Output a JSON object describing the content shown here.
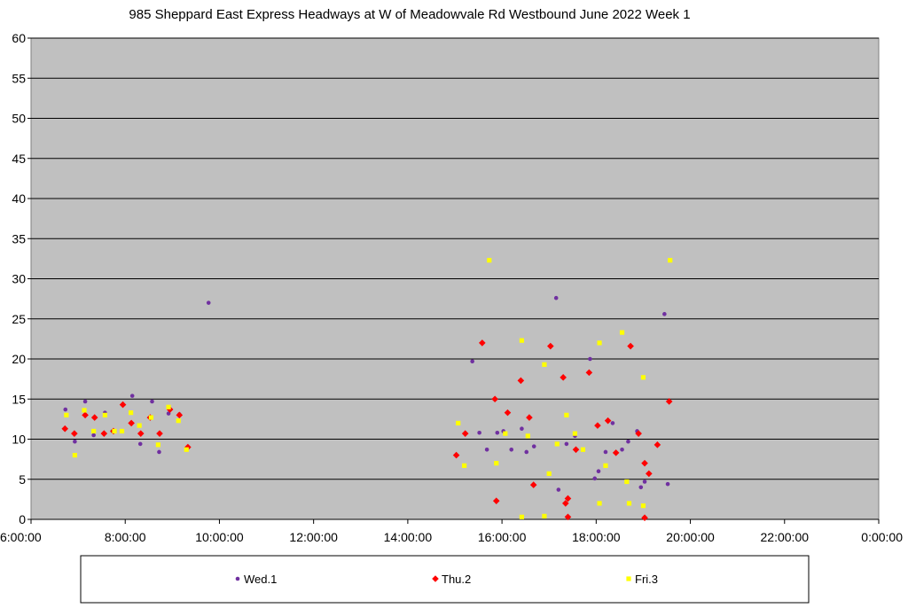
{
  "chart_data": {
    "type": "scatter",
    "title": "985 Sheppard East Express Headways at W of Meadowvale Rd Westbound June 2022  Week 1",
    "xlabel": "",
    "ylabel": "",
    "xlim": [
      6,
      24
    ],
    "ylim": [
      0,
      60
    ],
    "x_ticks": [
      6,
      8,
      10,
      12,
      14,
      16,
      18,
      20,
      22,
      24
    ],
    "x_tick_labels": [
      "6:00:00",
      "8:00:00",
      "10:00:00",
      "12:00:00",
      "14:00:00",
      "16:00:00",
      "18:00:00",
      "20:00:00",
      "22:00:00",
      "0:00:00"
    ],
    "y_ticks": [
      0,
      5,
      10,
      15,
      20,
      25,
      30,
      35,
      40,
      45,
      50,
      55,
      60
    ],
    "grid": true,
    "legend_position": "bottom",
    "plot_background": "#c0c0c0",
    "series": [
      {
        "name": "Wed.1",
        "color": "#7030a0",
        "marker": "circle",
        "points": [
          [
            6.73,
            13.7
          ],
          [
            6.93,
            9.7
          ],
          [
            7.15,
            14.7
          ],
          [
            7.33,
            10.5
          ],
          [
            7.57,
            13.3
          ],
          [
            7.73,
            11.0
          ],
          [
            8.15,
            15.4
          ],
          [
            8.32,
            9.4
          ],
          [
            8.57,
            14.7
          ],
          [
            8.72,
            8.4
          ],
          [
            8.92,
            13.2
          ],
          [
            9.15,
            13.1
          ],
          [
            9.77,
            27.0
          ],
          [
            15.37,
            19.7
          ],
          [
            15.52,
            10.8
          ],
          [
            15.68,
            8.7
          ],
          [
            15.9,
            10.8
          ],
          [
            16.03,
            11.0
          ],
          [
            16.2,
            8.7
          ],
          [
            16.42,
            11.3
          ],
          [
            16.52,
            8.4
          ],
          [
            16.68,
            9.1
          ],
          [
            17.15,
            27.6
          ],
          [
            17.2,
            3.7
          ],
          [
            17.37,
            9.4
          ],
          [
            17.55,
            10.4
          ],
          [
            17.87,
            20.0
          ],
          [
            17.97,
            5.1
          ],
          [
            18.05,
            6.0
          ],
          [
            18.2,
            8.4
          ],
          [
            18.35,
            12.0
          ],
          [
            18.55,
            8.7
          ],
          [
            18.68,
            9.7
          ],
          [
            18.87,
            11.0
          ],
          [
            18.95,
            4.0
          ],
          [
            19.03,
            4.7
          ],
          [
            19.45,
            25.6
          ],
          [
            19.52,
            4.4
          ]
        ]
      },
      {
        "name": "Thu.2",
        "color": "#ff0000",
        "marker": "diamond",
        "points": [
          [
            6.72,
            11.3
          ],
          [
            6.92,
            10.7
          ],
          [
            7.15,
            13.0
          ],
          [
            7.35,
            12.7
          ],
          [
            7.55,
            10.7
          ],
          [
            7.75,
            11.0
          ],
          [
            7.95,
            14.3
          ],
          [
            8.13,
            12.0
          ],
          [
            8.33,
            10.7
          ],
          [
            8.53,
            12.7
          ],
          [
            8.73,
            10.7
          ],
          [
            8.95,
            13.7
          ],
          [
            9.15,
            13.0
          ],
          [
            9.33,
            9.0
          ],
          [
            15.03,
            8.0
          ],
          [
            15.22,
            10.7
          ],
          [
            15.58,
            22.0
          ],
          [
            15.85,
            15.0
          ],
          [
            15.88,
            2.3
          ],
          [
            16.12,
            13.3
          ],
          [
            16.4,
            17.3
          ],
          [
            16.58,
            12.7
          ],
          [
            16.67,
            4.3
          ],
          [
            17.03,
            21.6
          ],
          [
            17.3,
            17.7
          ],
          [
            17.35,
            2.0
          ],
          [
            17.4,
            2.6
          ],
          [
            17.4,
            0.3
          ],
          [
            17.57,
            8.7
          ],
          [
            17.85,
            18.3
          ],
          [
            18.03,
            11.7
          ],
          [
            18.25,
            12.3
          ],
          [
            18.42,
            8.3
          ],
          [
            18.73,
            21.6
          ],
          [
            18.9,
            10.7
          ],
          [
            19.03,
            7.0
          ],
          [
            19.03,
            0.2
          ],
          [
            19.12,
            5.7
          ],
          [
            19.3,
            9.3
          ],
          [
            19.55,
            14.7
          ]
        ]
      },
      {
        "name": "Fri.3",
        "color": "#ffff00",
        "marker": "square",
        "points": [
          [
            6.75,
            13.0
          ],
          [
            6.93,
            8.0
          ],
          [
            7.13,
            13.6
          ],
          [
            7.33,
            11.0
          ],
          [
            7.57,
            13.0
          ],
          [
            7.77,
            11.0
          ],
          [
            7.93,
            11.0
          ],
          [
            8.12,
            13.3
          ],
          [
            8.3,
            11.7
          ],
          [
            8.55,
            12.7
          ],
          [
            8.7,
            9.3
          ],
          [
            8.92,
            14.0
          ],
          [
            9.13,
            12.3
          ],
          [
            9.3,
            8.7
          ],
          [
            15.07,
            12.0
          ],
          [
            15.2,
            6.7
          ],
          [
            15.73,
            32.3
          ],
          [
            15.88,
            7.0
          ],
          [
            16.07,
            10.7
          ],
          [
            16.42,
            22.3
          ],
          [
            16.42,
            0.3
          ],
          [
            16.55,
            10.4
          ],
          [
            16.9,
            19.3
          ],
          [
            16.9,
            0.4
          ],
          [
            17.0,
            5.7
          ],
          [
            17.17,
            9.4
          ],
          [
            17.37,
            13.0
          ],
          [
            17.55,
            10.7
          ],
          [
            17.72,
            8.7
          ],
          [
            18.07,
            22.0
          ],
          [
            18.07,
            2.0
          ],
          [
            18.2,
            6.7
          ],
          [
            18.55,
            23.3
          ],
          [
            18.65,
            4.7
          ],
          [
            18.7,
            2.0
          ],
          [
            19.0,
            17.7
          ],
          [
            19.0,
            1.7
          ],
          [
            19.57,
            32.3
          ]
        ]
      }
    ]
  }
}
